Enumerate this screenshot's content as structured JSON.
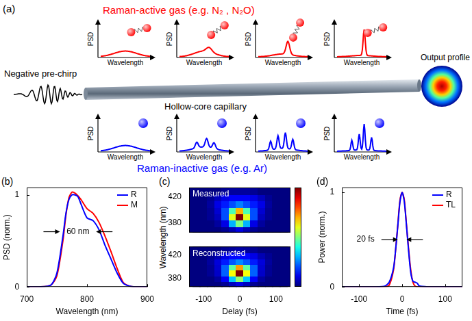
{
  "diagram": {
    "panel_label": "(a)",
    "top_title": "Raman-active gas (e.g. N₂ , N₂O)",
    "bottom_title": "Raman-inactive gas (e.g. Ar)",
    "input_label": "Negative pre-chirp",
    "capillary_label": "Hollow-core capillary",
    "output_label": "Output profile",
    "mini_plot_y_label": "PSD",
    "mini_plot_x_label": "Wavelength",
    "top_color": "#ff0000",
    "bottom_color": "#0000ff"
  },
  "chart_data": [
    {
      "type": "line",
      "panel_label": "(b)",
      "x_label": "Wavelength (nm)",
      "y_label": "PSD (norm.)",
      "x": [
        700,
        720,
        740,
        750,
        760,
        765,
        770,
        775,
        780,
        785,
        790,
        800,
        810,
        820,
        830,
        840,
        850,
        860,
        870,
        880,
        900
      ],
      "series": [
        {
          "name": "R",
          "color": "#0000ff",
          "values": [
            0,
            0,
            0.02,
            0.15,
            0.55,
            0.8,
            0.95,
            1.0,
            1.0,
            0.98,
            0.9,
            0.75,
            0.72,
            0.62,
            0.45,
            0.3,
            0.15,
            0.04,
            0.01,
            0,
            0
          ]
        },
        {
          "name": "M",
          "color": "#ff0000",
          "values": [
            0,
            0,
            0.02,
            0.12,
            0.5,
            0.78,
            0.97,
            1.03,
            1.02,
            0.99,
            0.95,
            0.85,
            0.8,
            0.7,
            0.55,
            0.38,
            0.2,
            0.05,
            0.01,
            0,
            0
          ]
        }
      ],
      "xlim": [
        700,
        900
      ],
      "xticks": [
        700,
        800,
        900
      ],
      "ylim": [
        0,
        1.08
      ],
      "yticks": [
        0,
        1
      ],
      "grid": false,
      "legend": "upper right",
      "annotations": [
        {
          "text": "60 nm",
          "x": 785,
          "y": 0.6,
          "span": [
            755,
            815
          ]
        }
      ]
    },
    {
      "type": "heatmap",
      "panel_label": "(c)",
      "x_label": "Delay (fs)",
      "y_label": "Wavelength (nm)",
      "x": [
        -120,
        -100,
        -80,
        -60,
        -40,
        -20,
        0,
        20,
        40,
        60,
        80,
        100,
        120
      ],
      "y": [
        370,
        380,
        390,
        400,
        410,
        420,
        430
      ],
      "xlim": [
        -140,
        140
      ],
      "xticks": [
        -100,
        0,
        100
      ],
      "ylim": [
        365,
        435
      ],
      "yticks": [
        380,
        420
      ],
      "color_range": [
        0,
        1
      ],
      "panels": [
        {
          "title": "Measured",
          "tick_labels": "y",
          "cells": [
            [
              0,
              0,
              0,
              0,
              0.02,
              0.05,
              0.1,
              0.05,
              0.02,
              0,
              0,
              0,
              0
            ],
            [
              0,
              0,
              0,
              0.03,
              0.1,
              0.3,
              0.5,
              0.3,
              0.1,
              0.03,
              0,
              0,
              0
            ],
            [
              0,
              0,
              0.02,
              0.06,
              0.2,
              0.6,
              1.0,
              0.6,
              0.2,
              0.06,
              0.02,
              0,
              0
            ],
            [
              0,
              0,
              0.02,
              0.08,
              0.2,
              0.45,
              0.7,
              0.45,
              0.2,
              0.08,
              0.02,
              0,
              0
            ],
            [
              0,
              0,
              0.03,
              0.1,
              0.15,
              0.2,
              0.25,
              0.2,
              0.15,
              0.1,
              0.03,
              0,
              0
            ],
            [
              0,
              0,
              0.02,
              0.06,
              0.1,
              0.12,
              0.12,
              0.12,
              0.1,
              0.06,
              0.02,
              0,
              0
            ],
            [
              0,
              0,
              0,
              0,
              0.02,
              0.03,
              0.03,
              0.03,
              0.02,
              0,
              0,
              0,
              0
            ]
          ]
        },
        {
          "title": "Reconstructed",
          "cells": [
            [
              0,
              0,
              0,
              0,
              0.02,
              0.06,
              0.1,
              0.06,
              0.02,
              0,
              0,
              0,
              0
            ],
            [
              0,
              0,
              0,
              0.03,
              0.12,
              0.32,
              0.52,
              0.32,
              0.12,
              0.03,
              0,
              0,
              0
            ],
            [
              0,
              0,
              0.02,
              0.07,
              0.22,
              0.62,
              1.0,
              0.62,
              0.22,
              0.07,
              0.02,
              0,
              0
            ],
            [
              0,
              0,
              0.02,
              0.08,
              0.22,
              0.47,
              0.72,
              0.47,
              0.22,
              0.08,
              0.02,
              0,
              0
            ],
            [
              0,
              0,
              0.03,
              0.09,
              0.15,
              0.21,
              0.26,
              0.21,
              0.15,
              0.09,
              0.03,
              0,
              0
            ],
            [
              0,
              0,
              0.02,
              0.05,
              0.1,
              0.13,
              0.13,
              0.13,
              0.1,
              0.05,
              0.02,
              0,
              0
            ],
            [
              0,
              0,
              0,
              0,
              0.02,
              0.03,
              0.04,
              0.03,
              0.02,
              0,
              0,
              0,
              0
            ]
          ]
        }
      ]
    },
    {
      "type": "line",
      "panel_label": "(d)",
      "x_label": "Time (fs)",
      "y_label": "Power (norm.)",
      "x": [
        -140,
        -100,
        -60,
        -40,
        -30,
        -20,
        -15,
        -10,
        -5,
        0,
        5,
        10,
        15,
        20,
        25,
        30,
        35,
        40,
        60,
        100,
        140
      ],
      "series": [
        {
          "name": "R",
          "color": "#0000ff",
          "values": [
            0,
            0,
            0,
            0.01,
            0.05,
            0.2,
            0.4,
            0.65,
            0.9,
            1.0,
            0.9,
            0.65,
            0.38,
            0.15,
            0.06,
            0.05,
            0.04,
            0.01,
            0,
            0,
            0
          ]
        },
        {
          "name": "TL",
          "color": "#ff0000",
          "values": [
            0,
            0,
            0,
            0,
            0.02,
            0.18,
            0.4,
            0.66,
            0.92,
            1.0,
            0.92,
            0.66,
            0.4,
            0.18,
            0.05,
            0.01,
            0,
            0,
            0,
            0,
            0
          ]
        }
      ],
      "xlim": [
        -140,
        140
      ],
      "xticks": [
        -100,
        0,
        100
      ],
      "ylim": [
        0,
        1.05
      ],
      "yticks": [
        0,
        1
      ],
      "grid": false,
      "legend": "upper right",
      "annotations": [
        {
          "text": "20 fs",
          "x": -85,
          "y": 0.5,
          "span": [
            -10,
            10
          ]
        }
      ]
    }
  ]
}
